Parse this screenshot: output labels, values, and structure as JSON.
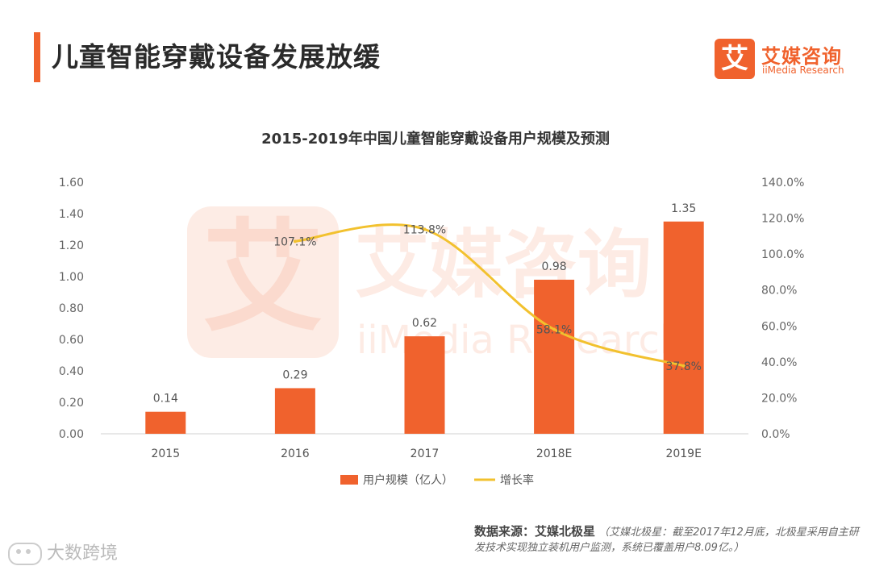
{
  "page": {
    "title": "儿童智能穿戴设备发展放缓",
    "accent_color": "#f0622d"
  },
  "brand": {
    "logo_glyph": "艾",
    "name_cn": "艾媒咨询",
    "name_en": "iiMedia Research"
  },
  "source": {
    "label": "数据来源：艾媒北极星",
    "note": "（艾媒北极星：截至2017年12月底，北极星采用自主研发技术实现独立装机用户监测，系统已覆盖用户8.09亿。）"
  },
  "footer": {
    "mark": "大数跨境"
  },
  "chart_data": {
    "type": "bar",
    "title": "2015-2019年中国儿童智能穿戴设备用户规模及预测",
    "categories": [
      "2015",
      "2016",
      "2017",
      "2018E",
      "2019E"
    ],
    "series": [
      {
        "name": "用户规模（亿人）",
        "type": "bar",
        "axis": "left",
        "color": "#f0622d",
        "values": [
          0.14,
          0.29,
          0.62,
          0.98,
          1.35
        ],
        "labels": [
          "0.14",
          "0.29",
          "0.62",
          "0.98",
          "1.35"
        ]
      },
      {
        "name": "增长率",
        "type": "line",
        "axis": "right",
        "color": "#f2c12e",
        "values": [
          null,
          107.1,
          113.8,
          58.1,
          37.8
        ],
        "labels": [
          "",
          "107.1%",
          "113.8%",
          "58.1%",
          "37.8%"
        ]
      }
    ],
    "y_left": {
      "min": 0,
      "max": 1.6,
      "ticks": [
        "0.00",
        "0.20",
        "0.40",
        "0.60",
        "0.80",
        "1.00",
        "1.20",
        "1.40",
        "1.60"
      ]
    },
    "y_right": {
      "min": 0,
      "max": 140,
      "ticks": [
        "0.0%",
        "20.0%",
        "40.0%",
        "60.0%",
        "80.0%",
        "100.0%",
        "120.0%",
        "140.0%"
      ]
    },
    "legend_position": "bottom-center",
    "grid": false,
    "watermark": {
      "glyph": "艾",
      "cn": "艾媒咨询",
      "en": "iiMedia Research"
    }
  }
}
